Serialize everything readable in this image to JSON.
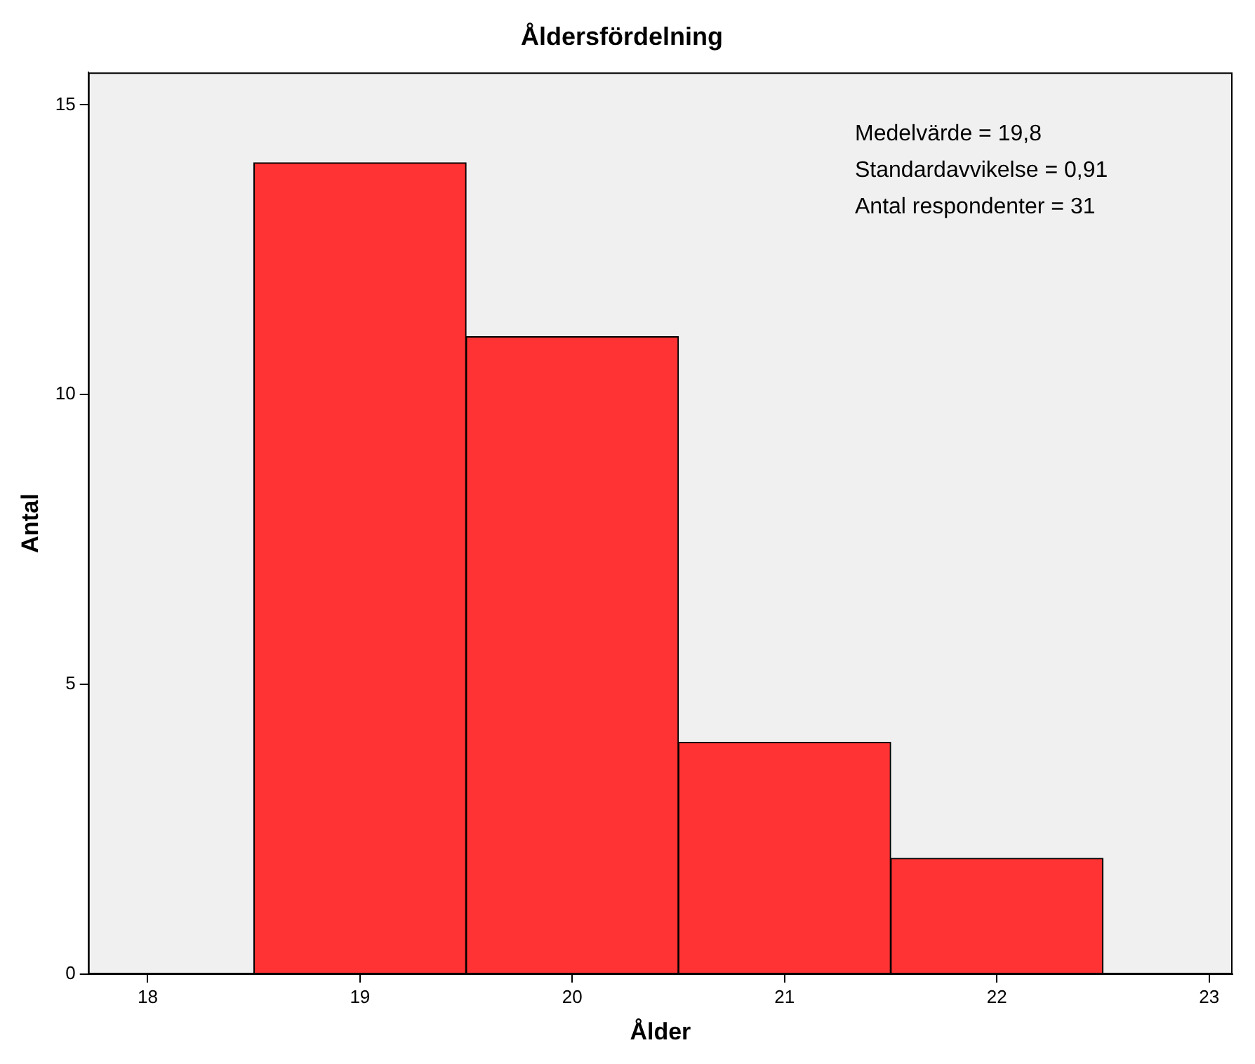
{
  "chart_data": {
    "type": "histogram",
    "title": "Åldersfördelning",
    "xlabel": "Ålder",
    "ylabel": "Antal",
    "bins": [
      18.5,
      19.5,
      20.5,
      21.5,
      22.5
    ],
    "values": [
      14,
      11,
      4,
      2
    ],
    "color": "#ff3333",
    "xlim": [
      17.72,
      23.11
    ],
    "xticks": [
      18,
      19,
      20,
      21,
      22,
      23
    ],
    "ylim": [
      0,
      15.56
    ],
    "yticks": [
      0,
      5,
      10,
      15
    ],
    "grid": false,
    "annotations": [
      "Medelvärde = 19,8",
      "Standardavvikelse = 0,91",
      "Antal respondenter = 31"
    ]
  }
}
